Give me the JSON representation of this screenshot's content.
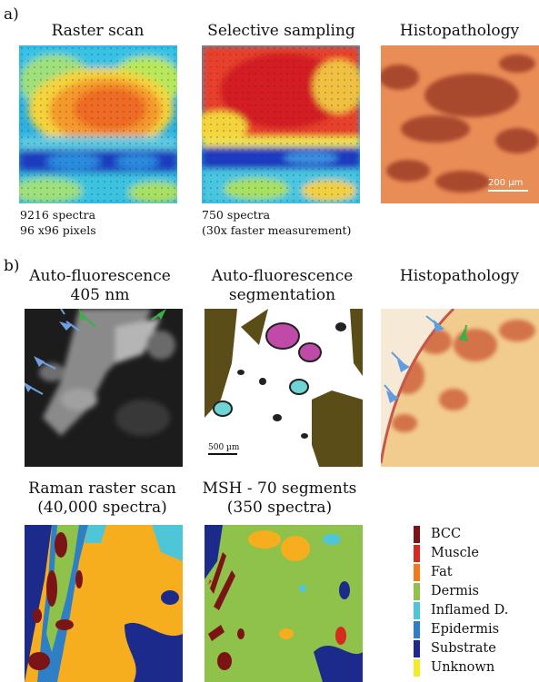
{
  "panel_a": {
    "label": "a)",
    "titles": [
      "Raster scan",
      "Selective sampling",
      "Histopathology"
    ],
    "raster_caption": [
      "9216 spectra",
      "96 x96 pixels"
    ],
    "selective_caption": [
      "750 spectra",
      "(30x faster measurement)"
    ],
    "scale_bar": "200 µm"
  },
  "panel_b": {
    "label": "b)",
    "titles_row1": [
      [
        "Auto-fluorescence",
        "405 nm"
      ],
      [
        "Auto-fluorescence",
        "segmentation"
      ],
      [
        "Histopathology"
      ]
    ],
    "titles_row2": [
      [
        "Raman raster scan",
        "(40,000 spectra)"
      ],
      [
        "MSH - 70 segments",
        "(350 spectra)"
      ]
    ],
    "scale_bar": "500 µm",
    "legend": [
      {
        "label": "BCC",
        "color": "#7b1414"
      },
      {
        "label": "Muscle",
        "color": "#d62a1e"
      },
      {
        "label": "Fat",
        "color": "#f07a1e"
      },
      {
        "label": "Dermis",
        "color": "#8ec24a"
      },
      {
        "label": "Inflamed D.",
        "color": "#4fc6d8"
      },
      {
        "label": "Epidermis",
        "color": "#2f7fc6"
      },
      {
        "label": "Substrate",
        "color": "#1c2a8c"
      },
      {
        "label": "Unknown",
        "color": "#f2ea2c"
      }
    ]
  }
}
